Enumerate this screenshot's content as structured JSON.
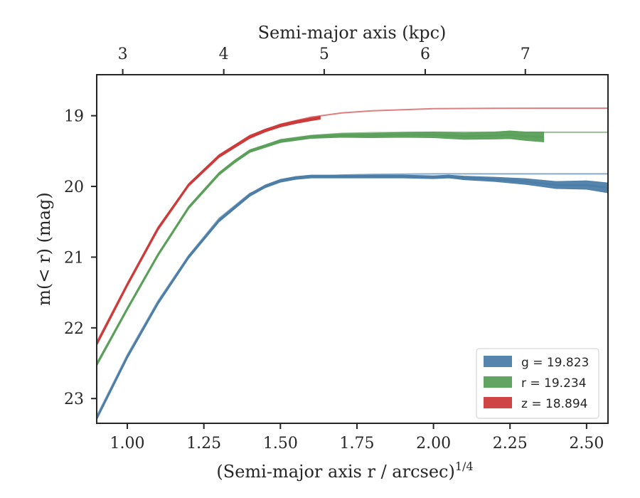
{
  "chart_data": {
    "type": "line",
    "top_axis": {
      "label": "Semi-major axis (kpc)",
      "ticks": [
        3,
        4,
        5,
        6,
        7
      ],
      "ticks_at_bottom_value": [
        0.985,
        1.315,
        1.643,
        1.973,
        2.3
      ]
    },
    "xlabel": "(Semi-major axis r / arcsec)",
    "xlabel_exponent": "1/4",
    "ylabel": "m(< r) (mag)",
    "xlim": [
      0.9,
      2.57
    ],
    "ylim": [
      23.35,
      18.42
    ],
    "y_inverted": true,
    "xticks": [
      "1.00",
      "1.25",
      "1.50",
      "1.75",
      "2.00",
      "2.25",
      "2.50"
    ],
    "yticks": [
      19,
      20,
      21,
      22,
      23
    ],
    "legend_position": "lower-right",
    "series": [
      {
        "name": "g = 19.823",
        "color": "#4c7ea8",
        "x": [
          0.9,
          1.0,
          1.1,
          1.2,
          1.3,
          1.4,
          1.45,
          1.5,
          1.55,
          1.6,
          1.7,
          1.8,
          1.9,
          2.0,
          2.05,
          2.1,
          2.2,
          2.3,
          2.4,
          2.5,
          2.57
        ],
        "y": [
          23.28,
          22.41,
          21.65,
          21.0,
          20.48,
          20.12,
          20.0,
          19.92,
          19.88,
          19.86,
          19.86,
          19.86,
          19.86,
          19.87,
          19.86,
          19.88,
          19.9,
          19.93,
          19.98,
          19.98,
          20.02
        ],
        "band": [
          0.02,
          0.02,
          0.02,
          0.02,
          0.02,
          0.02,
          0.02,
          0.02,
          0.02,
          0.02,
          0.02,
          0.02,
          0.02,
          0.02,
          0.02,
          0.025,
          0.03,
          0.04,
          0.05,
          0.06,
          0.07
        ],
        "model_x": [
          0.9,
          1.0,
          1.1,
          1.2,
          1.3,
          1.4,
          1.5,
          1.6,
          1.7,
          1.8,
          2.0,
          2.2,
          2.4,
          2.57
        ],
        "model_y": [
          23.25,
          22.38,
          21.62,
          20.98,
          20.45,
          20.1,
          19.92,
          19.86,
          19.84,
          19.83,
          19.823,
          19.823,
          19.823,
          19.823
        ]
      },
      {
        "name": "r = 19.234",
        "color": "#5aa05a",
        "x": [
          0.9,
          1.0,
          1.1,
          1.2,
          1.3,
          1.35,
          1.4,
          1.5,
          1.6,
          1.7,
          1.8,
          1.9,
          2.0,
          2.1,
          2.2,
          2.25,
          2.3,
          2.36
        ],
        "y": [
          22.52,
          21.73,
          20.97,
          20.3,
          19.82,
          19.65,
          19.5,
          19.36,
          19.3,
          19.28,
          19.28,
          19.27,
          19.27,
          19.29,
          19.28,
          19.27,
          19.29,
          19.3
        ],
        "band": [
          0.02,
          0.02,
          0.02,
          0.02,
          0.02,
          0.02,
          0.02,
          0.02,
          0.02,
          0.025,
          0.03,
          0.035,
          0.04,
          0.045,
          0.05,
          0.055,
          0.06,
          0.07
        ],
        "model_x": [
          0.9,
          1.0,
          1.1,
          1.2,
          1.3,
          1.4,
          1.5,
          1.6,
          1.7,
          1.8,
          2.0,
          2.2,
          2.4,
          2.57
        ],
        "model_y": [
          22.5,
          21.72,
          20.96,
          20.3,
          19.82,
          19.5,
          19.34,
          19.28,
          19.25,
          19.24,
          19.234,
          19.234,
          19.234,
          19.234
        ]
      },
      {
        "name": "z = 18.894",
        "color": "#cc3a3a",
        "x": [
          0.9,
          1.0,
          1.1,
          1.2,
          1.3,
          1.4,
          1.45,
          1.5,
          1.55,
          1.6,
          1.63
        ],
        "y": [
          22.23,
          21.39,
          20.6,
          19.98,
          19.57,
          19.3,
          19.21,
          19.14,
          19.09,
          19.05,
          19.03
        ],
        "band": [
          0.02,
          0.02,
          0.02,
          0.02,
          0.02,
          0.02,
          0.02,
          0.02,
          0.02,
          0.02,
          0.02
        ],
        "model_x": [
          0.9,
          1.0,
          1.1,
          1.2,
          1.3,
          1.4,
          1.5,
          1.6,
          1.7,
          1.8,
          2.0,
          2.2,
          2.4,
          2.57
        ],
        "model_y": [
          22.2,
          21.37,
          20.58,
          19.97,
          19.56,
          19.28,
          19.12,
          19.02,
          18.96,
          18.93,
          18.9,
          18.896,
          18.894,
          18.894
        ]
      }
    ]
  }
}
